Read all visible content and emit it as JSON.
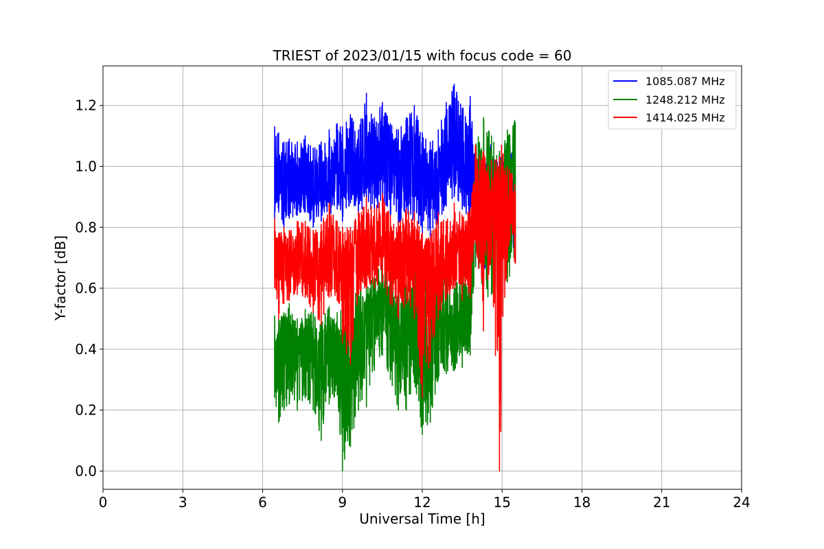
{
  "chart_data": {
    "type": "line",
    "title": "TRIEST of 2023/01/15 with focus code = 60",
    "xlabel": "Universal Time [h]",
    "ylabel": "Y-factor [dB]",
    "xlim": [
      0,
      24
    ],
    "ylim": [
      -0.06,
      1.33
    ],
    "xticks": [
      0,
      3,
      6,
      9,
      12,
      15,
      18,
      21,
      24
    ],
    "yticks": [
      0.0,
      0.2,
      0.4,
      0.6,
      0.8,
      1.0,
      1.2
    ],
    "xtick_labels": [
      "0",
      "3",
      "6",
      "9",
      "12",
      "15",
      "18",
      "21",
      "24"
    ],
    "ytick_labels": [
      "0.0",
      "0.2",
      "0.4",
      "0.6",
      "0.8",
      "1.0",
      "1.2"
    ],
    "grid": true,
    "legend_position": "top-right",
    "series": [
      {
        "name": "1085.087 MHz",
        "color": "#0000ff",
        "x": [
          6.45,
          6.6,
          6.8,
          7.0,
          7.3,
          7.6,
          7.9,
          8.2,
          8.5,
          8.8,
          9.0,
          9.3,
          9.6,
          9.9,
          10.2,
          10.5,
          10.8,
          11.1,
          11.4,
          11.7,
          12.0,
          12.3,
          12.6,
          12.9,
          13.2,
          13.5,
          13.8,
          14.0,
          14.3,
          14.6,
          14.9,
          15.2,
          15.5
        ],
        "y": [
          0.9,
          1.0,
          0.92,
          0.97,
          0.95,
          0.98,
          0.93,
          0.94,
          0.96,
          1.0,
          0.97,
          1.01,
          0.99,
          1.03,
          1.02,
          1.05,
          1.0,
          0.97,
          1.01,
          0.99,
          0.95,
          0.94,
          0.97,
          1.03,
          1.05,
          1.02,
          0.98,
          0.9,
          0.88,
          0.92,
          0.9,
          0.93,
          0.88
        ],
        "low": [
          0.83,
          0.85,
          0.8,
          0.83,
          0.84,
          0.85,
          0.8,
          0.82,
          0.84,
          0.86,
          0.82,
          0.88,
          0.85,
          0.87,
          0.85,
          0.88,
          0.84,
          0.8,
          0.85,
          0.82,
          0.78,
          0.77,
          0.8,
          0.87,
          0.9,
          0.86,
          0.8,
          0.68,
          0.62,
          0.75,
          0.7,
          0.72,
          0.7
        ],
        "high": [
          1.13,
          1.11,
          1.08,
          1.09,
          1.08,
          1.1,
          1.06,
          1.08,
          1.12,
          1.14,
          1.13,
          1.17,
          1.12,
          1.24,
          1.16,
          1.21,
          1.14,
          1.12,
          1.16,
          1.2,
          1.11,
          1.08,
          1.12,
          1.21,
          1.27,
          1.19,
          1.23,
          1.05,
          1.0,
          1.08,
          1.04,
          1.08,
          1.03
        ]
      },
      {
        "name": "1248.212 MHz",
        "color": "#008000",
        "x": [
          6.45,
          6.6,
          6.8,
          7.0,
          7.3,
          7.6,
          7.9,
          8.2,
          8.5,
          8.8,
          9.0,
          9.3,
          9.6,
          9.9,
          10.2,
          10.5,
          10.8,
          11.1,
          11.4,
          11.7,
          12.0,
          12.3,
          12.6,
          12.9,
          13.2,
          13.5,
          13.8,
          14.0,
          14.3,
          14.6,
          14.9,
          15.2,
          15.5
        ],
        "y": [
          0.35,
          0.32,
          0.38,
          0.4,
          0.39,
          0.42,
          0.37,
          0.36,
          0.4,
          0.35,
          0.33,
          0.36,
          0.42,
          0.48,
          0.5,
          0.55,
          0.5,
          0.44,
          0.45,
          0.48,
          0.42,
          0.4,
          0.45,
          0.47,
          0.45,
          0.47,
          0.5,
          0.85,
          0.9,
          0.92,
          0.88,
          0.95,
          0.9
        ],
        "low": [
          0.24,
          0.16,
          0.2,
          0.22,
          0.2,
          0.24,
          0.2,
          0.1,
          0.22,
          0.25,
          0.0,
          0.08,
          0.2,
          0.21,
          0.33,
          0.38,
          0.3,
          0.2,
          0.2,
          0.29,
          0.12,
          0.16,
          0.3,
          0.32,
          0.33,
          0.34,
          0.38,
          0.67,
          0.56,
          0.58,
          0.6,
          0.62,
          0.68
        ],
        "high": [
          0.51,
          0.5,
          0.52,
          0.55,
          0.5,
          0.53,
          0.52,
          0.5,
          0.54,
          0.52,
          0.55,
          0.6,
          0.6,
          0.62,
          0.65,
          0.68,
          0.67,
          0.62,
          0.64,
          0.66,
          0.65,
          0.62,
          0.63,
          0.67,
          0.64,
          0.66,
          0.68,
          1.07,
          1.16,
          1.1,
          1.05,
          1.12,
          1.17
        ]
      },
      {
        "name": "1414.025 MHz",
        "color": "#ff0000",
        "x": [
          6.45,
          6.6,
          6.8,
          7.0,
          7.3,
          7.6,
          7.9,
          8.2,
          8.5,
          8.8,
          9.0,
          9.3,
          9.6,
          9.9,
          10.2,
          10.5,
          10.8,
          11.1,
          11.4,
          11.7,
          12.0,
          12.3,
          12.6,
          12.9,
          13.2,
          13.5,
          13.8,
          14.0,
          14.3,
          14.6,
          14.9,
          15.2,
          15.5
        ],
        "y": [
          0.7,
          0.66,
          0.68,
          0.67,
          0.7,
          0.69,
          0.65,
          0.66,
          0.7,
          0.68,
          0.64,
          0.67,
          0.7,
          0.72,
          0.73,
          0.76,
          0.7,
          0.68,
          0.7,
          0.67,
          0.64,
          0.63,
          0.66,
          0.68,
          0.72,
          0.7,
          0.71,
          0.85,
          0.88,
          0.86,
          0.87,
          0.88,
          0.85
        ],
        "low": [
          0.6,
          0.5,
          0.55,
          0.56,
          0.58,
          0.57,
          0.52,
          0.48,
          0.57,
          0.56,
          0.42,
          0.35,
          0.58,
          0.6,
          0.6,
          0.62,
          0.55,
          0.5,
          0.55,
          0.5,
          0.24,
          0.36,
          0.5,
          0.56,
          0.6,
          0.56,
          0.57,
          0.75,
          0.46,
          0.7,
          0.0,
          0.7,
          0.68
        ],
        "high": [
          0.83,
          0.78,
          0.8,
          0.79,
          0.82,
          0.82,
          0.79,
          0.81,
          0.88,
          0.82,
          0.8,
          0.8,
          0.85,
          0.9,
          0.86,
          0.91,
          0.84,
          0.82,
          0.86,
          0.85,
          0.78,
          0.77,
          0.85,
          0.82,
          0.88,
          0.84,
          0.86,
          1.07,
          1.05,
          1.02,
          1.03,
          1.0,
          0.98
        ]
      }
    ]
  }
}
